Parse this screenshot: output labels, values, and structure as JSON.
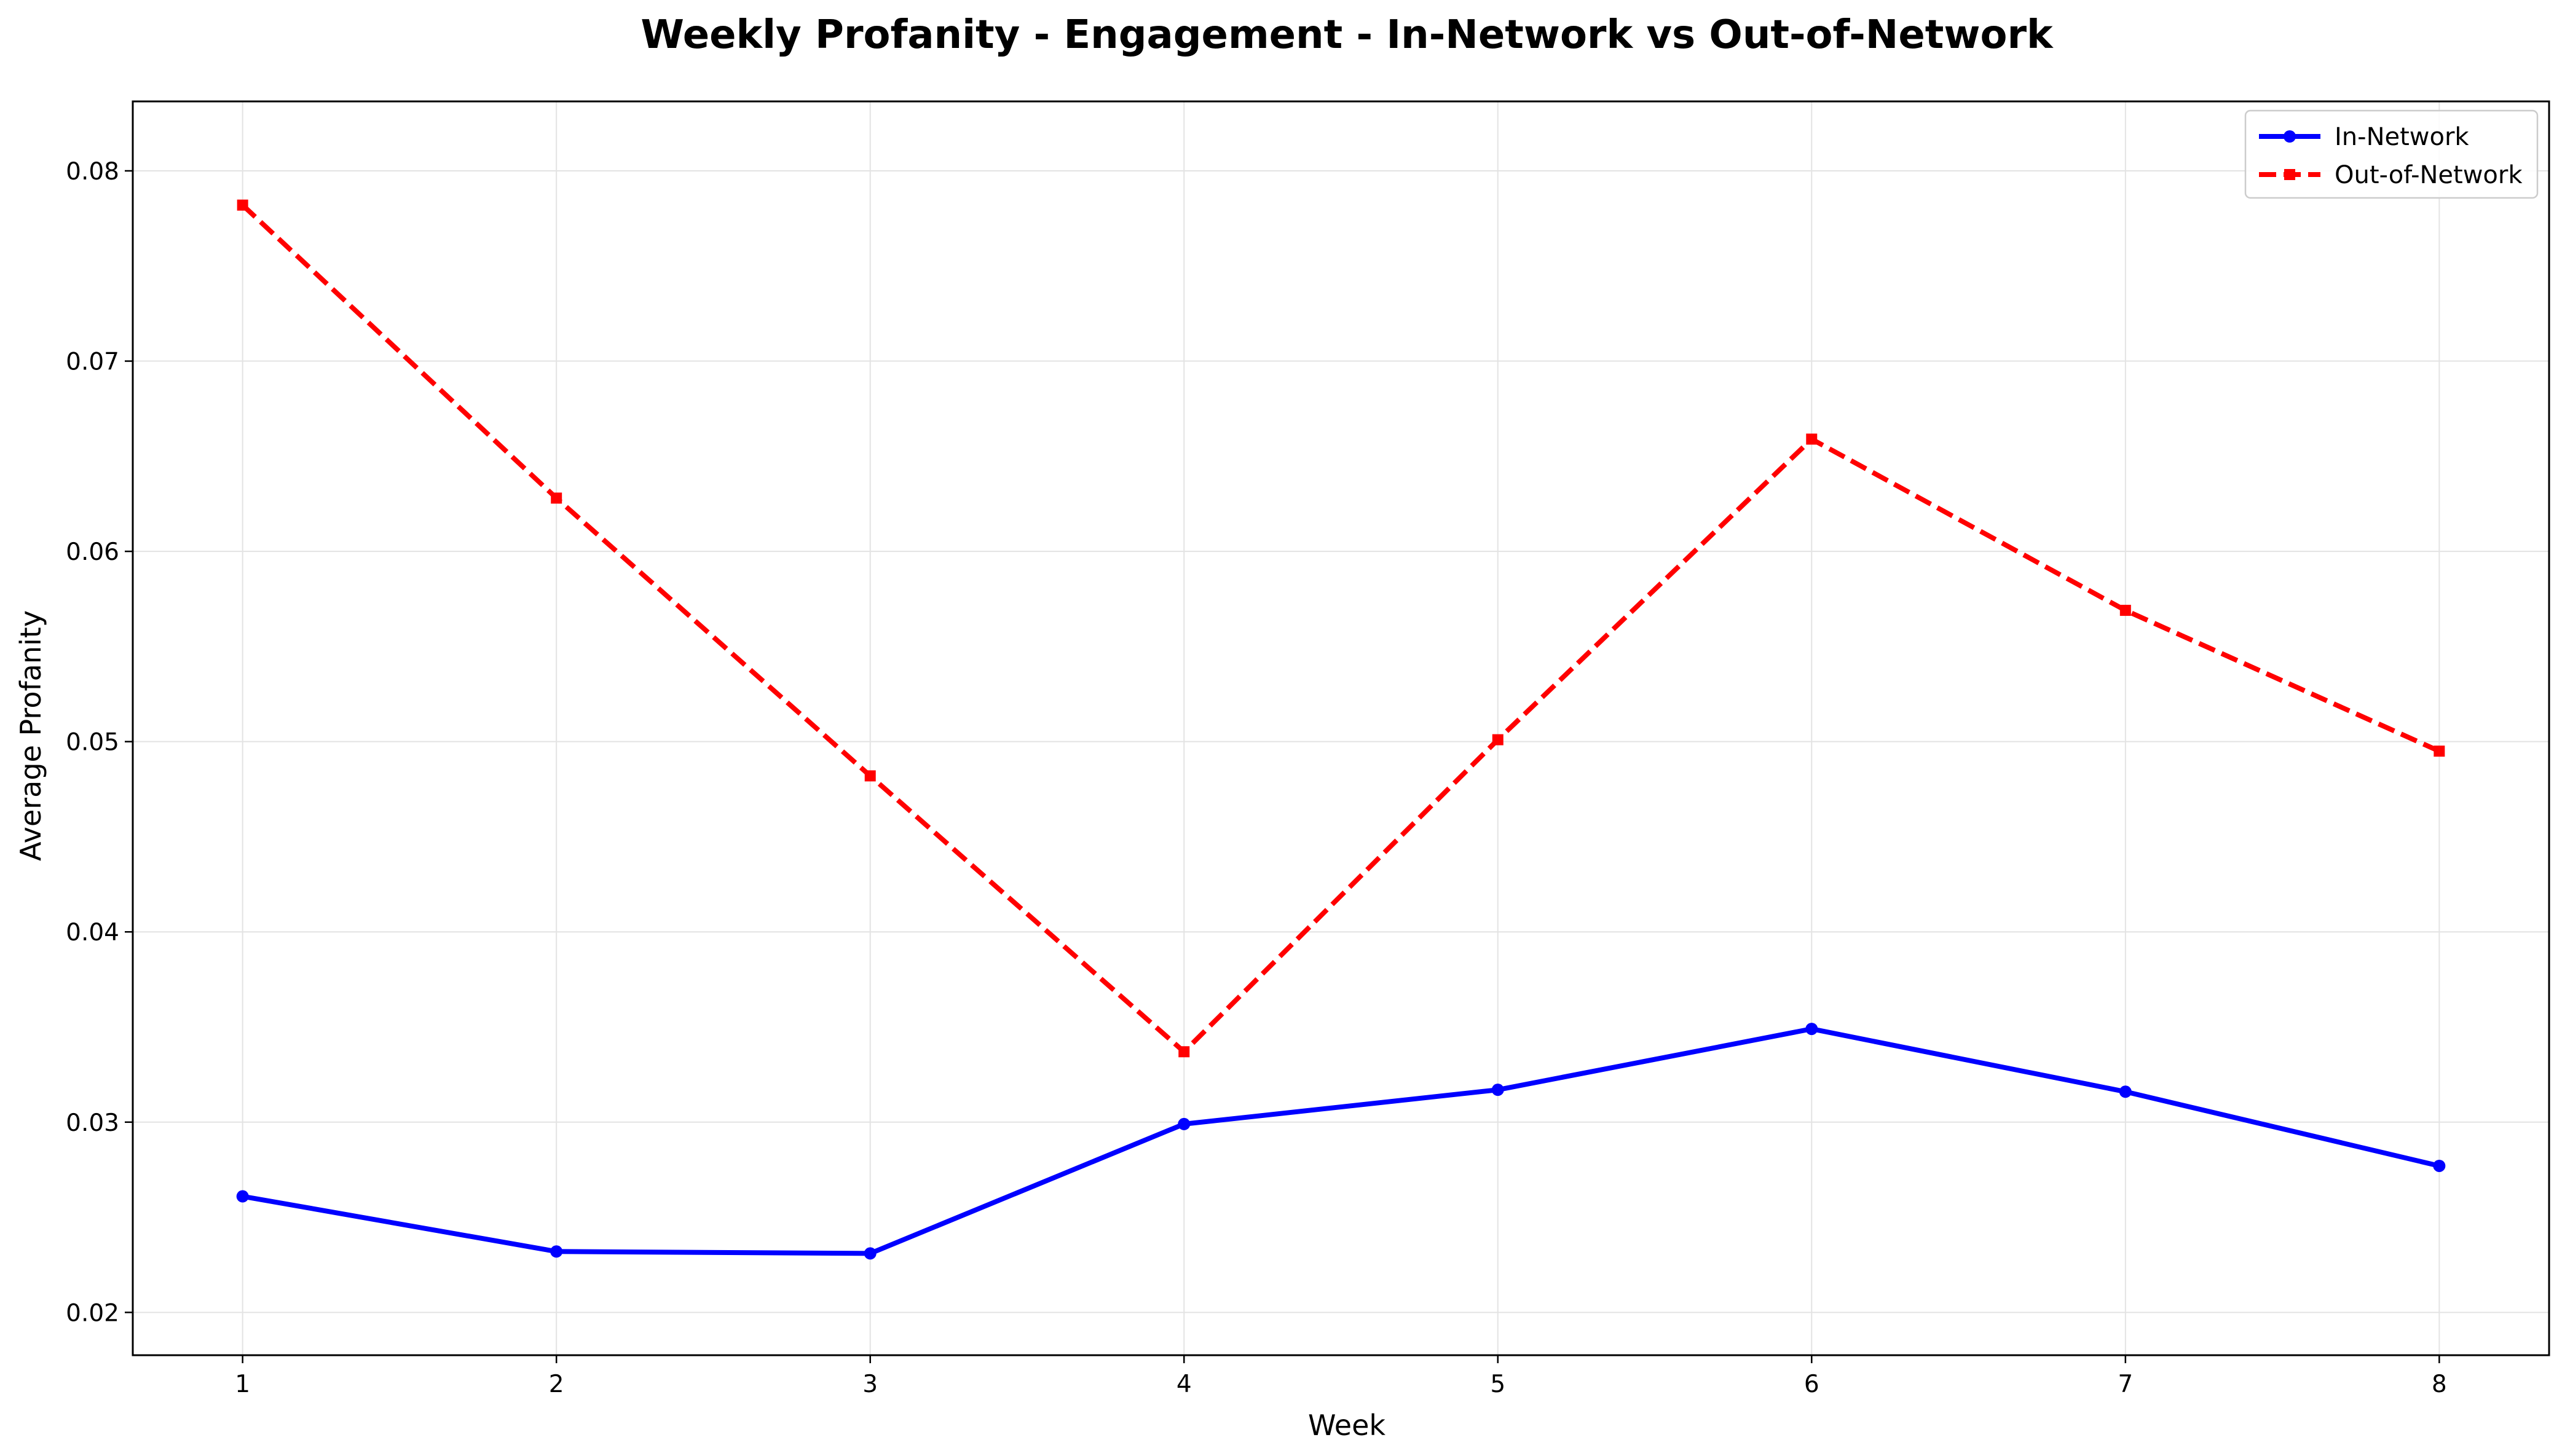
{
  "chart_data": {
    "type": "line",
    "title": "Weekly Profanity - Engagement - In-Network vs Out-of-Network",
    "xlabel": "Week",
    "ylabel": "Average Profanity",
    "x": [
      1,
      2,
      3,
      4,
      5,
      6,
      7,
      8
    ],
    "x_tick_labels": [
      "1",
      "2",
      "3",
      "4",
      "5",
      "6",
      "7",
      "8"
    ],
    "xlim": [
      0.65,
      8.35
    ],
    "ylim": [
      0.01775,
      0.08365
    ],
    "y_ticks": [
      0.02,
      0.03,
      0.04,
      0.05,
      0.06,
      0.07,
      0.08
    ],
    "y_tick_labels": [
      "0.02",
      "0.03",
      "0.04",
      "0.05",
      "0.06",
      "0.07",
      "0.08"
    ],
    "grid": true,
    "legend_position": "top-right",
    "series": [
      {
        "name": "In-Network",
        "values": [
          0.0261,
          0.0232,
          0.0231,
          0.0299,
          0.0317,
          0.0349,
          0.0316,
          0.0277
        ],
        "color": "#0000ff",
        "line_style": "solid",
        "marker": "circle"
      },
      {
        "name": "Out-of-Network",
        "values": [
          0.0782,
          0.0628,
          0.0482,
          0.0337,
          0.0501,
          0.0659,
          0.0569,
          0.0495
        ],
        "color": "#ff0000",
        "line_style": "dashed",
        "marker": "square"
      }
    ]
  }
}
